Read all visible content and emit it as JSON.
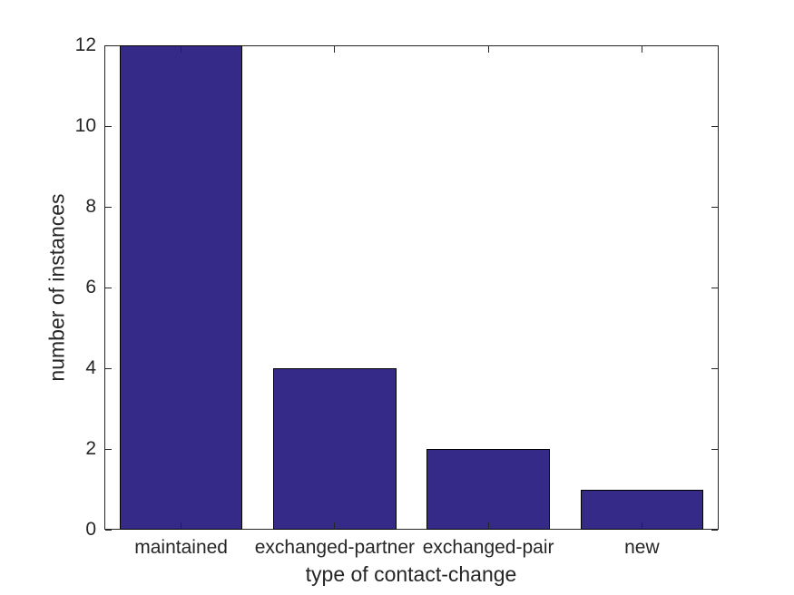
{
  "chart_data": {
    "type": "bar",
    "categories": [
      "maintained",
      "exchanged-partner",
      "exchanged-pair",
      "new"
    ],
    "values": [
      12,
      4,
      2,
      1
    ],
    "title": "",
    "xlabel": "type of contact-change",
    "ylabel": "number of instances",
    "ylim": [
      0,
      12
    ],
    "yticks": [
      0,
      2,
      4,
      6,
      8,
      10,
      12
    ],
    "ytick_labels": [
      "0",
      "2",
      "4",
      "6",
      "8",
      "10",
      "12"
    ],
    "bar_width_fraction": 0.8,
    "grid": false,
    "legend": null,
    "box": true,
    "tick_direction": "in",
    "colors": {
      "bar_fill": "#352A87",
      "bar_edge": "#000000",
      "axis": "#262626",
      "text": "#262626",
      "background": "#FFFFFF"
    }
  }
}
